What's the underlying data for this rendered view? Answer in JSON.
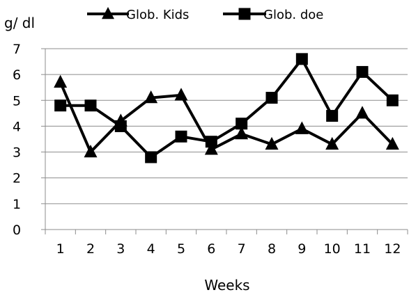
{
  "chart_data": {
    "type": "line",
    "xlabel": "Weeks",
    "ylabel": "g/ dl",
    "categories": [
      "1",
      "2",
      "3",
      "4",
      "5",
      "6",
      "7",
      "8",
      "9",
      "10",
      "11",
      "12"
    ],
    "ylim": [
      0,
      7
    ],
    "yticks": [
      "0",
      "1",
      "2",
      "3",
      "4",
      "5",
      "6",
      "7"
    ],
    "grid": "horizontal",
    "legend_position": "top",
    "series": [
      {
        "name": "Glob. Kids",
        "marker": "triangle",
        "color": "#000000",
        "values": [
          5.7,
          3.0,
          4.2,
          5.1,
          5.2,
          3.1,
          3.7,
          3.3,
          3.9,
          3.3,
          4.5,
          3.3
        ]
      },
      {
        "name": "Glob. doe",
        "marker": "square",
        "color": "#000000",
        "values": [
          4.8,
          4.8,
          4.0,
          2.8,
          3.6,
          3.4,
          4.1,
          5.1,
          6.6,
          4.4,
          6.1,
          5.0
        ]
      }
    ]
  }
}
